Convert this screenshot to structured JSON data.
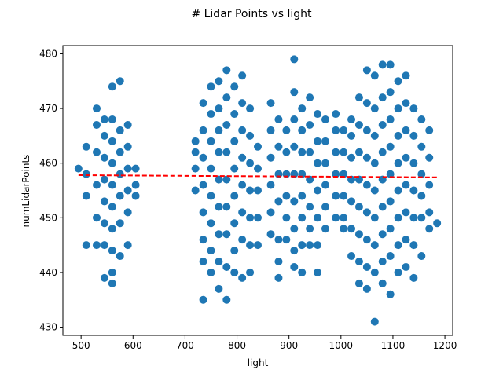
{
  "chart_data": {
    "type": "scatter",
    "title": "# Lidar Points vs light",
    "xlabel": "light",
    "ylabel": "numLidarPoints",
    "xlim": [
      465,
      1215
    ],
    "ylim": [
      428.5,
      481.5
    ],
    "xticks": [
      500,
      600,
      700,
      800,
      900,
      1000,
      1100,
      1200
    ],
    "yticks": [
      430,
      440,
      450,
      460,
      470,
      480
    ],
    "grid": false,
    "legend": "none",
    "colors": {
      "points": "#1f77b4",
      "trend": "#ff0000"
    },
    "trend_line": {
      "style": "dashed",
      "x": [
        495,
        1185
      ],
      "y": [
        457.8,
        457.4
      ]
    },
    "series": [
      {
        "points": [
          [
            495,
            459
          ],
          [
            510,
            463
          ],
          [
            510,
            458
          ],
          [
            510,
            454
          ],
          [
            510,
            445
          ],
          [
            530,
            470
          ],
          [
            530,
            467
          ],
          [
            530,
            462
          ],
          [
            530,
            456
          ],
          [
            530,
            450
          ],
          [
            530,
            445
          ],
          [
            545,
            468
          ],
          [
            545,
            465
          ],
          [
            545,
            461
          ],
          [
            545,
            457
          ],
          [
            545,
            453
          ],
          [
            545,
            449
          ],
          [
            545,
            445
          ],
          [
            545,
            439
          ],
          [
            560,
            474
          ],
          [
            560,
            468
          ],
          [
            560,
            464
          ],
          [
            560,
            460
          ],
          [
            560,
            456
          ],
          [
            560,
            452
          ],
          [
            560,
            448
          ],
          [
            560,
            444
          ],
          [
            560,
            440
          ],
          [
            560,
            438
          ],
          [
            575,
            475
          ],
          [
            575,
            466
          ],
          [
            575,
            462
          ],
          [
            575,
            458
          ],
          [
            575,
            454
          ],
          [
            575,
            449
          ],
          [
            575,
            443
          ],
          [
            590,
            467
          ],
          [
            590,
            463
          ],
          [
            590,
            459
          ],
          [
            590,
            455
          ],
          [
            590,
            451
          ],
          [
            590,
            445
          ],
          [
            605,
            459
          ],
          [
            605,
            456
          ],
          [
            605,
            454
          ],
          [
            720,
            464
          ],
          [
            720,
            462
          ],
          [
            720,
            459
          ],
          [
            720,
            455
          ],
          [
            735,
            471
          ],
          [
            735,
            466
          ],
          [
            735,
            461
          ],
          [
            735,
            456
          ],
          [
            735,
            451
          ],
          [
            735,
            446
          ],
          [
            735,
            442
          ],
          [
            735,
            435
          ],
          [
            750,
            474
          ],
          [
            750,
            469
          ],
          [
            750,
            464
          ],
          [
            750,
            459
          ],
          [
            750,
            454
          ],
          [
            750,
            449
          ],
          [
            750,
            444
          ],
          [
            750,
            440
          ],
          [
            765,
            475
          ],
          [
            765,
            470
          ],
          [
            765,
            466
          ],
          [
            765,
            462
          ],
          [
            765,
            457
          ],
          [
            765,
            452
          ],
          [
            765,
            447
          ],
          [
            765,
            442
          ],
          [
            765,
            437
          ],
          [
            780,
            477
          ],
          [
            780,
            472
          ],
          [
            780,
            467
          ],
          [
            780,
            462
          ],
          [
            780,
            457
          ],
          [
            780,
            452
          ],
          [
            780,
            447
          ],
          [
            780,
            441
          ],
          [
            780,
            435
          ],
          [
            795,
            474
          ],
          [
            795,
            469
          ],
          [
            795,
            464
          ],
          [
            795,
            459
          ],
          [
            795,
            454
          ],
          [
            795,
            449
          ],
          [
            795,
            444
          ],
          [
            795,
            440
          ],
          [
            810,
            476
          ],
          [
            810,
            471
          ],
          [
            810,
            466
          ],
          [
            810,
            461
          ],
          [
            810,
            456
          ],
          [
            810,
            451
          ],
          [
            810,
            446
          ],
          [
            810,
            439
          ],
          [
            825,
            470
          ],
          [
            825,
            465
          ],
          [
            825,
            460
          ],
          [
            825,
            455
          ],
          [
            825,
            450
          ],
          [
            825,
            445
          ],
          [
            825,
            440
          ],
          [
            840,
            463
          ],
          [
            840,
            459
          ],
          [
            840,
            455
          ],
          [
            840,
            450
          ],
          [
            840,
            445
          ],
          [
            865,
            471
          ],
          [
            865,
            466
          ],
          [
            865,
            461
          ],
          [
            865,
            456
          ],
          [
            865,
            451
          ],
          [
            865,
            447
          ],
          [
            880,
            468
          ],
          [
            880,
            463
          ],
          [
            880,
            458
          ],
          [
            880,
            453
          ],
          [
            880,
            446
          ],
          [
            880,
            442
          ],
          [
            880,
            439
          ],
          [
            895,
            466
          ],
          [
            895,
            462
          ],
          [
            895,
            458
          ],
          [
            895,
            454
          ],
          [
            895,
            450
          ],
          [
            895,
            446
          ],
          [
            910,
            479
          ],
          [
            910,
            473
          ],
          [
            910,
            468
          ],
          [
            910,
            463
          ],
          [
            910,
            458
          ],
          [
            910,
            453
          ],
          [
            910,
            448
          ],
          [
            910,
            444
          ],
          [
            910,
            441
          ],
          [
            925,
            470
          ],
          [
            925,
            466
          ],
          [
            925,
            462
          ],
          [
            925,
            458
          ],
          [
            925,
            454
          ],
          [
            925,
            450
          ],
          [
            925,
            445
          ],
          [
            925,
            440
          ],
          [
            940,
            472
          ],
          [
            940,
            467
          ],
          [
            940,
            462
          ],
          [
            940,
            457
          ],
          [
            940,
            452
          ],
          [
            940,
            448
          ],
          [
            940,
            445
          ],
          [
            955,
            469
          ],
          [
            955,
            464
          ],
          [
            955,
            460
          ],
          [
            955,
            455
          ],
          [
            955,
            450
          ],
          [
            955,
            445
          ],
          [
            955,
            440
          ],
          [
            970,
            468
          ],
          [
            970,
            464
          ],
          [
            970,
            460
          ],
          [
            970,
            456
          ],
          [
            970,
            452
          ],
          [
            970,
            448
          ],
          [
            990,
            469
          ],
          [
            990,
            466
          ],
          [
            990,
            462
          ],
          [
            990,
            458
          ],
          [
            990,
            454
          ],
          [
            990,
            450
          ],
          [
            1005,
            466
          ],
          [
            1005,
            462
          ],
          [
            1005,
            458
          ],
          [
            1005,
            454
          ],
          [
            1005,
            450
          ],
          [
            1005,
            448
          ],
          [
            1020,
            468
          ],
          [
            1020,
            465
          ],
          [
            1020,
            461
          ],
          [
            1020,
            457
          ],
          [
            1020,
            453
          ],
          [
            1020,
            448
          ],
          [
            1020,
            443
          ],
          [
            1035,
            472
          ],
          [
            1035,
            467
          ],
          [
            1035,
            462
          ],
          [
            1035,
            457
          ],
          [
            1035,
            452
          ],
          [
            1035,
            447
          ],
          [
            1035,
            442
          ],
          [
            1035,
            438
          ],
          [
            1050,
            477
          ],
          [
            1050,
            471
          ],
          [
            1050,
            466
          ],
          [
            1050,
            461
          ],
          [
            1050,
            456
          ],
          [
            1050,
            451
          ],
          [
            1050,
            446
          ],
          [
            1050,
            441
          ],
          [
            1050,
            437
          ],
          [
            1065,
            476
          ],
          [
            1065,
            470
          ],
          [
            1065,
            465
          ],
          [
            1065,
            460
          ],
          [
            1065,
            455
          ],
          [
            1065,
            450
          ],
          [
            1065,
            445
          ],
          [
            1065,
            440
          ],
          [
            1065,
            431
          ],
          [
            1080,
            478
          ],
          [
            1080,
            472
          ],
          [
            1080,
            467
          ],
          [
            1080,
            462
          ],
          [
            1080,
            457
          ],
          [
            1080,
            452
          ],
          [
            1080,
            447
          ],
          [
            1080,
            442
          ],
          [
            1080,
            438
          ],
          [
            1095,
            478
          ],
          [
            1095,
            473
          ],
          [
            1095,
            468
          ],
          [
            1095,
            463
          ],
          [
            1095,
            458
          ],
          [
            1095,
            453
          ],
          [
            1095,
            448
          ],
          [
            1095,
            443
          ],
          [
            1095,
            436
          ],
          [
            1110,
            475
          ],
          [
            1110,
            470
          ],
          [
            1110,
            465
          ],
          [
            1110,
            460
          ],
          [
            1110,
            455
          ],
          [
            1110,
            450
          ],
          [
            1110,
            445
          ],
          [
            1110,
            440
          ],
          [
            1125,
            476
          ],
          [
            1125,
            471
          ],
          [
            1125,
            466
          ],
          [
            1125,
            461
          ],
          [
            1125,
            456
          ],
          [
            1125,
            451
          ],
          [
            1125,
            446
          ],
          [
            1125,
            441
          ],
          [
            1140,
            470
          ],
          [
            1140,
            465
          ],
          [
            1140,
            460
          ],
          [
            1140,
            455
          ],
          [
            1140,
            450
          ],
          [
            1140,
            445
          ],
          [
            1140,
            439
          ],
          [
            1155,
            468
          ],
          [
            1155,
            463
          ],
          [
            1155,
            458
          ],
          [
            1155,
            454
          ],
          [
            1155,
            450
          ],
          [
            1155,
            443
          ],
          [
            1170,
            466
          ],
          [
            1170,
            461
          ],
          [
            1170,
            456
          ],
          [
            1170,
            451
          ],
          [
            1170,
            448
          ],
          [
            1185,
            449
          ]
        ]
      }
    ]
  }
}
